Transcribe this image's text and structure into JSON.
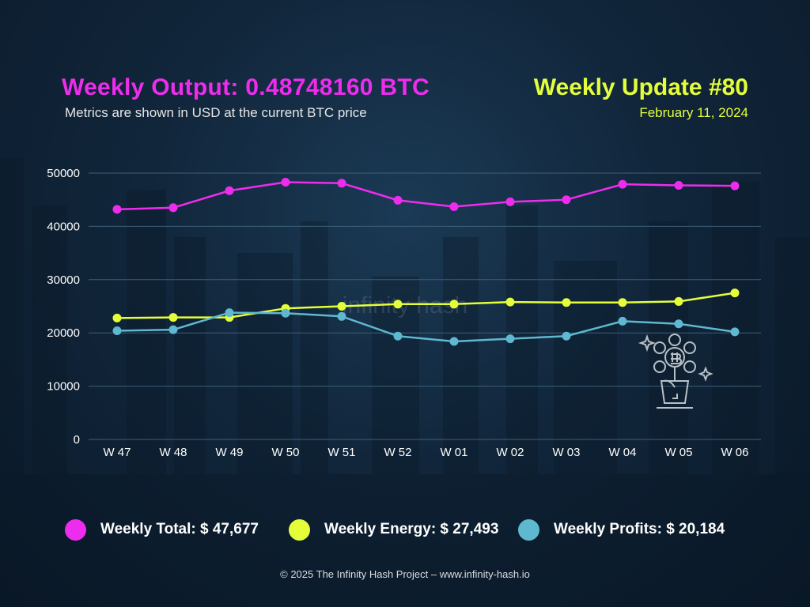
{
  "header": {
    "title": "Weekly Output: 0.48748160 BTC",
    "subtitle": "Metrics are shown in USD at the current BTC price",
    "update_title": "Weekly Update #80",
    "update_date": "February 11, 2024"
  },
  "watermark": "infinity hash",
  "colors": {
    "total": "#ee2cee",
    "energy": "#e4ff3a",
    "profits": "#5eb8cf",
    "grid": "#3d5f78",
    "icon": "#b8c0c6"
  },
  "icon": "bitcoin-plant-icon",
  "chart_data": {
    "type": "line",
    "categories": [
      "W 47",
      "W 48",
      "W 49",
      "W 50",
      "W 51",
      "W 52",
      "W 01",
      "W 02",
      "W 03",
      "W 04",
      "W 05",
      "W 06"
    ],
    "y_ticks": [
      "0",
      "10000",
      "20000",
      "30000",
      "40000",
      "50000"
    ],
    "ylim": [
      0,
      50000
    ],
    "grid": true,
    "legend_position": "bottom",
    "series": [
      {
        "key": "total",
        "name": "Weekly Total: $ 47,677",
        "values": [
          43200,
          43500,
          46700,
          48300,
          48100,
          44900,
          43700,
          44600,
          45000,
          47900,
          47700,
          47600
        ]
      },
      {
        "key": "energy",
        "name": "Weekly Energy: $ 27,493",
        "values": [
          22800,
          22900,
          22900,
          24600,
          25000,
          25400,
          25400,
          25800,
          25700,
          25700,
          25900,
          27500
        ]
      },
      {
        "key": "profits",
        "name": "Weekly Profits: $ 20,184",
        "values": [
          20400,
          20600,
          23800,
          23700,
          23100,
          19400,
          18400,
          18900,
          19400,
          22200,
          21700,
          20200
        ]
      }
    ]
  },
  "footer": "© 2025 The Infinity Hash Project – www.infinity-hash.io"
}
